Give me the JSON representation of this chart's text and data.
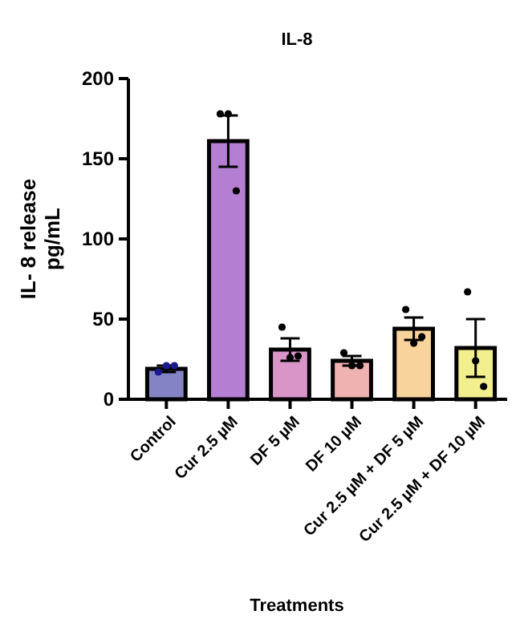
{
  "chart_data": {
    "type": "bar",
    "title": "IL-8",
    "xlabel": "Treatments",
    "ylabel": "IL- 8 release\npg/mL",
    "categories": [
      "Control",
      "Cur 2.5 µM",
      "DF 5 µM",
      "DF 10  µM",
      "Cur 2.5 µM + DF 5 µM",
      "Cur 2.5 µM + DF 10 µM"
    ],
    "series": [
      {
        "values": [
          19,
          161,
          31,
          24,
          44,
          32
        ],
        "colors": [
          "#8484c4",
          "#b47ed2",
          "#d994c8",
          "#f0b2b0",
          "#f9d39c",
          "#f2f08e"
        ],
        "errors": [
          2,
          16,
          7,
          3,
          7,
          18
        ]
      },
      {
        "type": "scatter",
        "x": [
          "Control",
          "Control",
          "Control",
          "Cur 2.5 µM",
          "Cur 2.5 µM",
          "Cur 2.5 µM",
          "DF 5 µM",
          "DF 5 µM",
          "DF 5 µM",
          "DF 10  µM",
          "DF 10  µM",
          "DF 10  µM",
          "Cur 2.5 µM + DF 5 µM",
          "Cur 2.5 µM + DF 5 µM",
          "Cur 2.5 µM + DF 5 µM",
          "Cur 2.5 µM + DF 10 µM",
          "Cur 2.5 µM + DF 10 µM",
          "Cur 2.5 µM + DF 10 µM"
        ],
        "values": [
          17,
          21,
          21,
          178,
          178,
          130,
          45,
          26,
          27,
          29,
          21,
          21,
          56,
          35,
          39,
          67,
          24,
          8
        ],
        "colors": [
          "#1a1a8c",
          "#1a1a8c",
          "#1a1a8c",
          "#000000",
          "#000000",
          "#000000",
          "#000000",
          "#000000",
          "#000000",
          "#000000",
          "#000000",
          "#000000",
          "#000000",
          "#000000",
          "#000000",
          "#000000",
          "#000000",
          "#000000"
        ]
      }
    ],
    "ylim": [
      0,
      200
    ],
    "yticks": [
      0,
      50,
      100,
      150,
      200
    ],
    "grid": false,
    "marker": "circle"
  }
}
